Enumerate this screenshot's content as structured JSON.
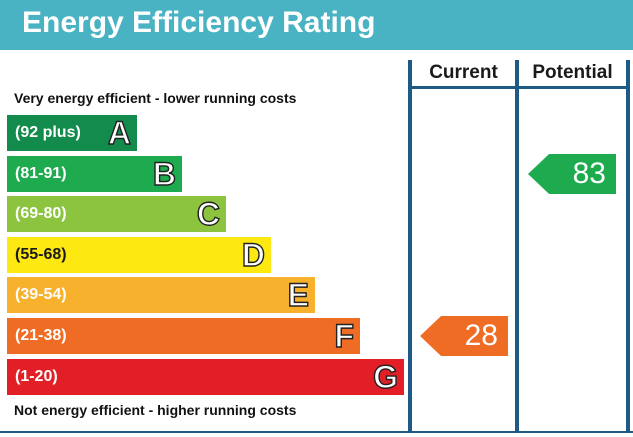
{
  "title": "Energy Efficiency Rating",
  "columns": {
    "current": "Current",
    "potential": "Potential"
  },
  "captions": {
    "top": "Very energy efficient - lower running costs",
    "bottom": "Not energy efficient - higher running costs"
  },
  "chart_data": {
    "type": "bar",
    "title": "Energy Efficiency Rating",
    "bands": [
      {
        "range": "(92 plus)",
        "letter": "A",
        "color": "#138b4c"
      },
      {
        "range": "(81-91)",
        "letter": "B",
        "color": "#1eab4f"
      },
      {
        "range": "(69-80)",
        "letter": "C",
        "color": "#8cc43f"
      },
      {
        "range": "(55-68)",
        "letter": "D",
        "color": "#fde812"
      },
      {
        "range": "(39-54)",
        "letter": "E",
        "color": "#f7b12c"
      },
      {
        "range": "(21-38)",
        "letter": "F",
        "color": "#ee6c24"
      },
      {
        "range": "(1-20)",
        "letter": "G",
        "color": "#e21e26"
      }
    ],
    "current": {
      "value": 28,
      "band": "F",
      "color": "#ee6c24"
    },
    "potential": {
      "value": 83,
      "band": "B",
      "color": "#1eab4f"
    }
  }
}
